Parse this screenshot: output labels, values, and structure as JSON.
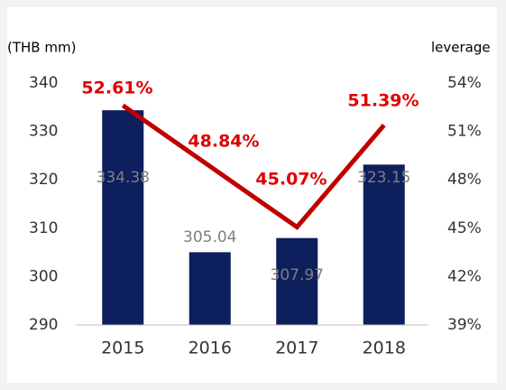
{
  "chart_data": {
    "type": "bar",
    "y_label": "(THB mm)",
    "y2_label": "leverage",
    "categories": [
      "2015",
      "2016",
      "2017",
      "2018"
    ],
    "series": [
      {
        "type": "bar",
        "color": "#0d1f5c",
        "values": [
          334.38,
          305.04,
          307.97,
          323.15
        ]
      },
      {
        "type": "line",
        "axis": "y2",
        "color": "#c00000",
        "values": [
          52.61,
          48.84,
          45.07,
          51.39
        ],
        "value_labels": [
          "52.61%",
          "48.84%",
          "45.07%",
          "51.39%"
        ]
      }
    ],
    "ylim": [
      290,
      340
    ],
    "yticks": [
      290,
      300,
      310,
      320,
      330,
      340
    ],
    "y2lim": [
      39,
      54
    ],
    "y2ticks": [
      {
        "value": 39,
        "label": "39%"
      },
      {
        "value": 42,
        "label": "42%"
      },
      {
        "value": 45,
        "label": "45%"
      },
      {
        "value": 48,
        "label": "48%"
      },
      {
        "value": 51,
        "label": "51%"
      },
      {
        "value": 54,
        "label": "54%"
      }
    ]
  }
}
